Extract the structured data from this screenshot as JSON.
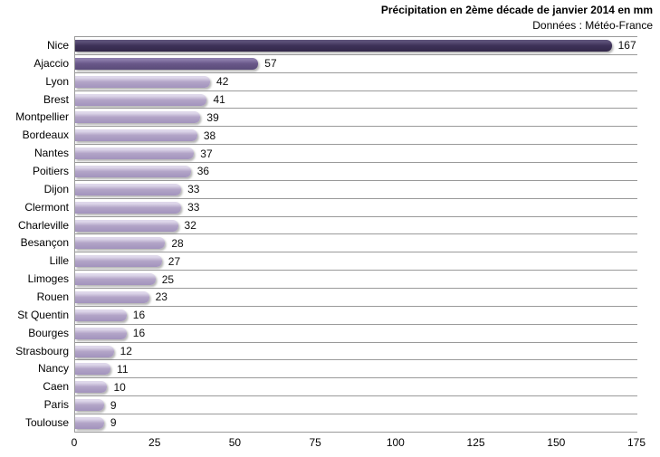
{
  "header": {
    "title": "Précipitation en 2ème décade de janvier 2014  en mm",
    "subtitle": "Données : Météo-France"
  },
  "chart_data": {
    "type": "bar",
    "orientation": "horizontal",
    "title": "Précipitation en 2ème décade de janvier 2014  en mm",
    "subtitle": "Données : Météo-France",
    "categories": [
      "Nice",
      "Ajaccio",
      "Lyon",
      "Brest",
      "Montpellier",
      "Bordeaux",
      "Nantes",
      "Poitiers",
      "Dijon",
      "Clermont",
      "Charleville",
      "Besançon",
      "Lille",
      "Limoges",
      "Rouen",
      "St Quentin",
      "Bourges",
      "Strasbourg",
      "Nancy",
      "Caen",
      "Paris",
      "Toulouse"
    ],
    "values": [
      167,
      57,
      42,
      41,
      39,
      38,
      37,
      36,
      33,
      33,
      32,
      28,
      27,
      25,
      23,
      16,
      16,
      12,
      11,
      10,
      9,
      9
    ],
    "xlabel": "",
    "ylabel": "",
    "xlim": [
      0,
      175
    ],
    "xticks": [
      0,
      25,
      50,
      75,
      100,
      125,
      150,
      175
    ],
    "grid": "horizontal-category-separators-only",
    "legend": "none",
    "value_labels": "outside-end",
    "bar_styles": [
      "nice",
      "ajaccio",
      "default",
      "default",
      "default",
      "default",
      "default",
      "default",
      "default",
      "default",
      "default",
      "default",
      "default",
      "default",
      "default",
      "default",
      "default",
      "default",
      "default",
      "default",
      "default",
      "default"
    ],
    "colors": {
      "bar_default": {
        "top": "#ded7ea",
        "mid": "#b2a4c7",
        "bottom": "#a293bd"
      },
      "bar_nice": {
        "top": "#5c5178",
        "mid": "#3d3158",
        "bottom": "#332849"
      },
      "bar_ajaccio": {
        "top": "#8c7cab",
        "mid": "#685788",
        "bottom": "#5a4b79"
      },
      "gridline": "#9a9a9a",
      "text": "#000000",
      "background": "#ffffff"
    }
  }
}
